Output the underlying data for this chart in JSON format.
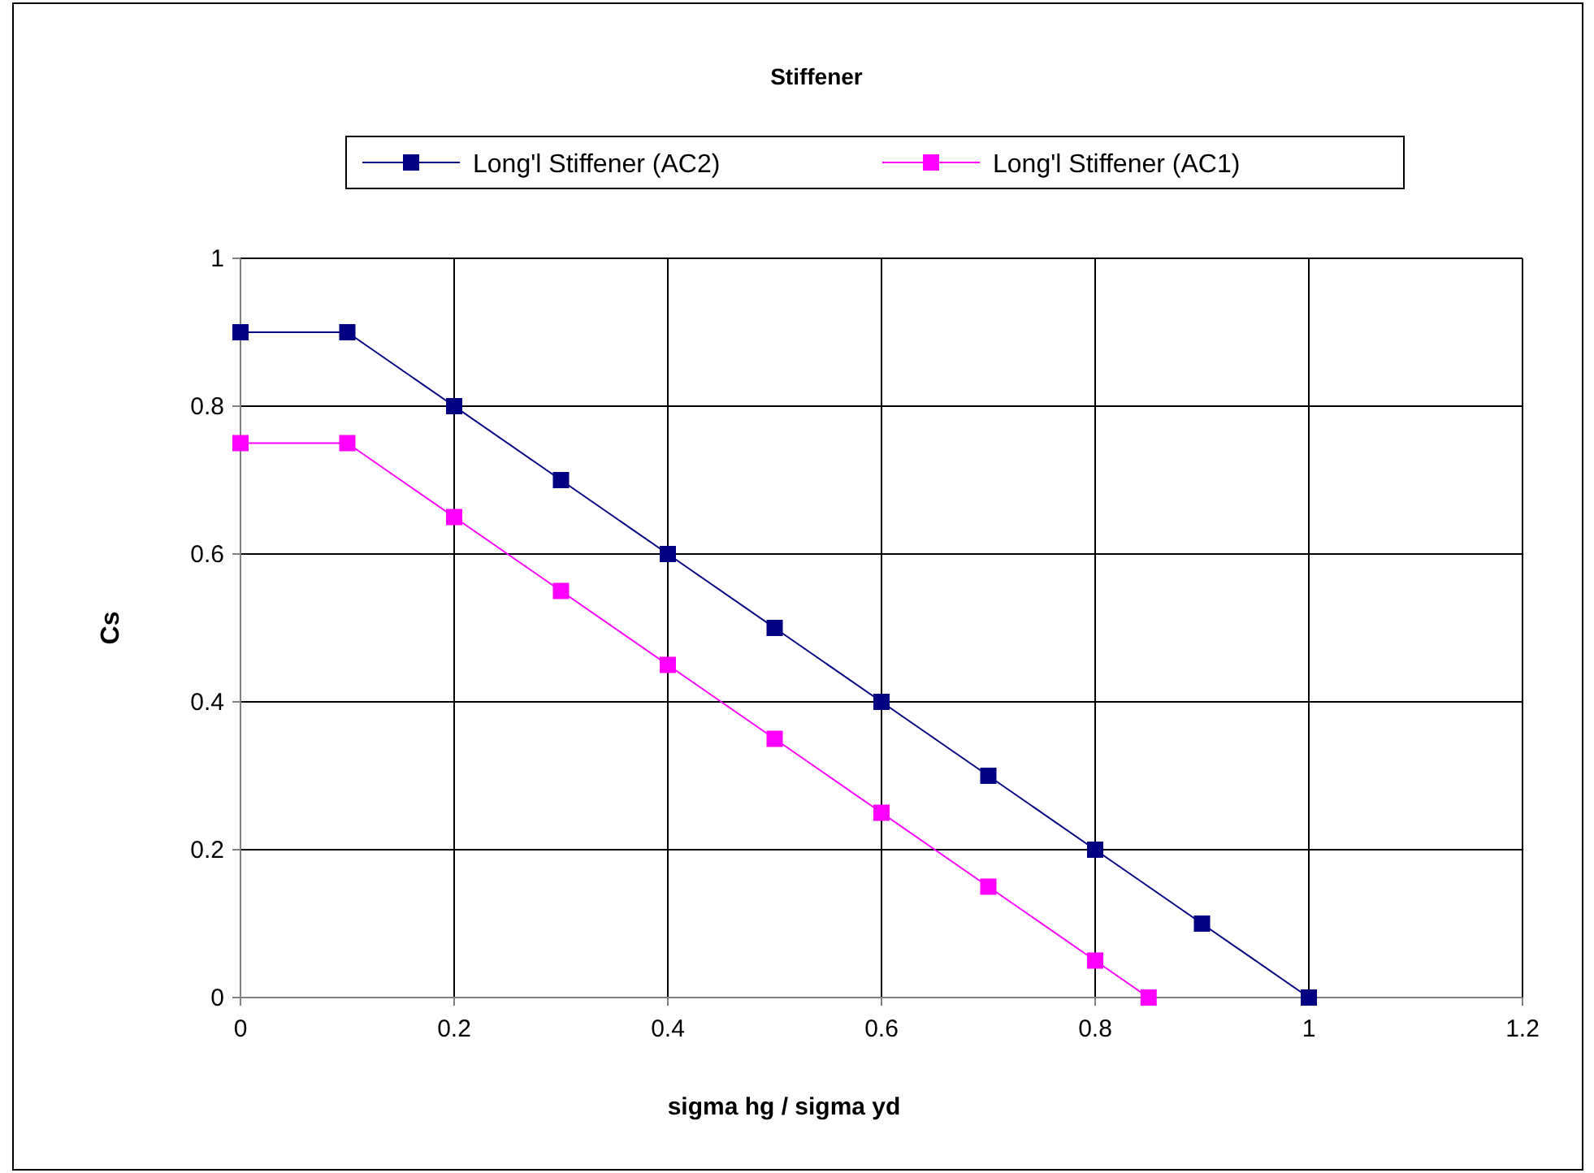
{
  "chart_data": {
    "type": "line",
    "title": "Stiffener",
    "xlabel": "sigma hg / sigma yd",
    "ylabel": "Cs",
    "xlim": [
      0,
      1.2
    ],
    "xticks": [
      0,
      0.2,
      0.4,
      0.6,
      0.8,
      1,
      1.2
    ],
    "ylim": [
      0,
      1
    ],
    "yticks": [
      0,
      0.2,
      0.4,
      0.6,
      0.8,
      1
    ],
    "grid": true,
    "legend": "top",
    "marker": "square",
    "series": [
      {
        "name": "Long'l Stiffener (AC2)",
        "color": "#000080",
        "x": [
          0,
          0.1,
          0.2,
          0.3,
          0.4,
          0.5,
          0.6,
          0.7,
          0.8,
          0.9,
          1
        ],
        "values": [
          0.9,
          0.9,
          0.8,
          0.7,
          0.6,
          0.5,
          0.4,
          0.3,
          0.2,
          0.1,
          0
        ]
      },
      {
        "name": "Long'l Stiffener (AC1)",
        "color": "#ff00ff",
        "x": [
          0,
          0.1,
          0.2,
          0.3,
          0.4,
          0.5,
          0.6,
          0.7,
          0.8,
          0.85
        ],
        "values": [
          0.75,
          0.75,
          0.65,
          0.55,
          0.45,
          0.35,
          0.25,
          0.15,
          0.05,
          0
        ]
      }
    ]
  }
}
